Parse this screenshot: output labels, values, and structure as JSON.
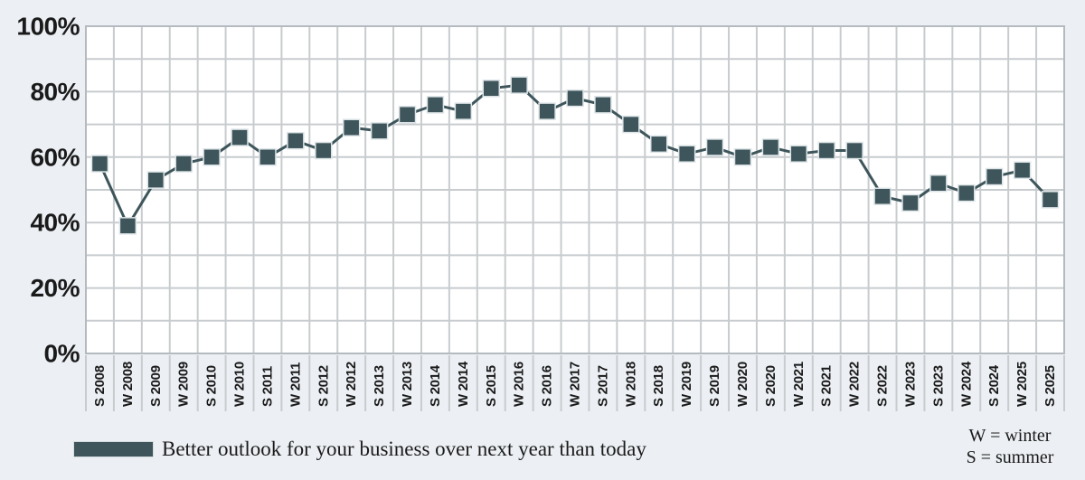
{
  "page": {
    "background": "#ecf0f4"
  },
  "legend": {
    "series_label": "Better outlook for your business over next year than today",
    "swatch_color": "#3e565b"
  },
  "season_key": {
    "lines": [
      "W = winter",
      "S = summer"
    ]
  },
  "chart_data": {
    "type": "line",
    "title": "",
    "xlabel": "",
    "ylabel": "",
    "categories": [
      "S 2008",
      "W 2008",
      "S 2009",
      "W 2009",
      "S 2010",
      "W 2010",
      "S 2011",
      "W 2011",
      "S 2012",
      "W 2012",
      "S 2013",
      "W 2013",
      "S 2014",
      "W 2014",
      "S 2015",
      "W 2016",
      "S 2016",
      "W 2017",
      "S 2017",
      "W 2018",
      "S 2018",
      "W 2019",
      "S 2019",
      "W 2020",
      "S 2020",
      "W 2021",
      "S 2021",
      "W 2022",
      "S 2022",
      "W 2023",
      "S 2023",
      "W 2024",
      "S 2024",
      "W 2025",
      "S 2025"
    ],
    "series": [
      {
        "name": "Better outlook for your business over next year than today",
        "values": [
          58,
          39,
          53,
          58,
          60,
          66,
          60,
          65,
          62,
          69,
          68,
          73,
          76,
          74,
          81,
          82,
          74,
          78,
          76,
          70,
          64,
          61,
          63,
          60,
          63,
          61,
          62,
          62,
          48,
          46,
          52,
          49,
          54,
          56,
          47
        ]
      }
    ],
    "ylim": [
      0,
      100
    ],
    "yticks": [
      {
        "value": 0,
        "label": "0%"
      },
      {
        "value": 20,
        "label": "20%"
      },
      {
        "value": 40,
        "label": "40%"
      },
      {
        "value": 60,
        "label": "60%"
      },
      {
        "value": 80,
        "label": "80%"
      },
      {
        "value": 100,
        "label": "100%"
      }
    ],
    "ygrid_minor_step": 10,
    "grid": "horizontal every 10%, vertical per category",
    "marker": "square",
    "legend_position": "bottom-left",
    "colors": {
      "series": "#3e565b",
      "marker_stroke": "#dde4e7",
      "grid": "#c8cccf",
      "border": "#b4bac0",
      "plot_bg": "#ffffff",
      "text": "#1a1a1a"
    }
  }
}
